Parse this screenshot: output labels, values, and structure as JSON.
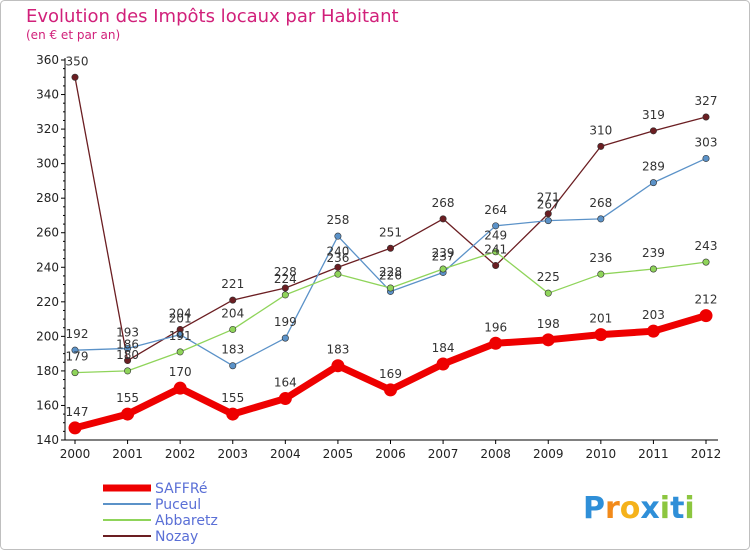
{
  "title": "Evolution des Impôts locaux par Habitant",
  "subtitle": "(en € et par an)",
  "logo": "Proxiti",
  "colors": {
    "title": "#d1207a",
    "legend_text": "#5a6fd6"
  },
  "chart_data": {
    "type": "line",
    "x": [
      "2000",
      "2001",
      "2002",
      "2003",
      "2004",
      "2005",
      "2006",
      "2007",
      "2008",
      "2009",
      "2010",
      "2011",
      "2012"
    ],
    "ylim": [
      140,
      360
    ],
    "yticks": [
      140,
      160,
      180,
      200,
      220,
      240,
      260,
      280,
      300,
      320,
      340,
      360
    ],
    "grid": false,
    "legend_position": "bottom-left",
    "series": [
      {
        "name": "SAFFRé",
        "color": "#ee0000",
        "values": [
          147,
          155,
          170,
          155,
          164,
          183,
          169,
          184,
          196,
          198,
          201,
          203,
          212
        ]
      },
      {
        "name": "Puceul",
        "color": "#5b92c8",
        "values": [
          192,
          193,
          201,
          183,
          199,
          258,
          226,
          237,
          264,
          267,
          268,
          289,
          303
        ]
      },
      {
        "name": "Abbaretz",
        "color": "#8fd45a",
        "values": [
          179,
          180,
          191,
          204,
          224,
          236,
          228,
          239,
          249,
          225,
          236,
          239,
          243
        ]
      },
      {
        "name": "Nozay",
        "color": "#6b1e22",
        "values": [
          350,
          186,
          204,
          221,
          228,
          240,
          251,
          268,
          241,
          271,
          310,
          319,
          327
        ]
      }
    ],
    "data_labels": [
      [
        "147",
        "155",
        "170",
        "155",
        "164",
        "183",
        "169",
        "184",
        "196",
        "198",
        "201",
        "203",
        "212"
      ],
      [
        "192",
        "193",
        "201",
        "183",
        "199",
        "258",
        "226",
        "237",
        "264",
        "267",
        "268",
        "289",
        "303"
      ],
      [
        "179",
        "180",
        "191",
        "204",
        "224",
        "236",
        "228",
        "239",
        "249",
        "225",
        "236",
        "239",
        "243"
      ],
      [
        "350",
        "186",
        "204",
        "221",
        "228",
        "240",
        "251",
        "268",
        "241",
        "271",
        "310",
        "319",
        "327"
      ]
    ]
  }
}
